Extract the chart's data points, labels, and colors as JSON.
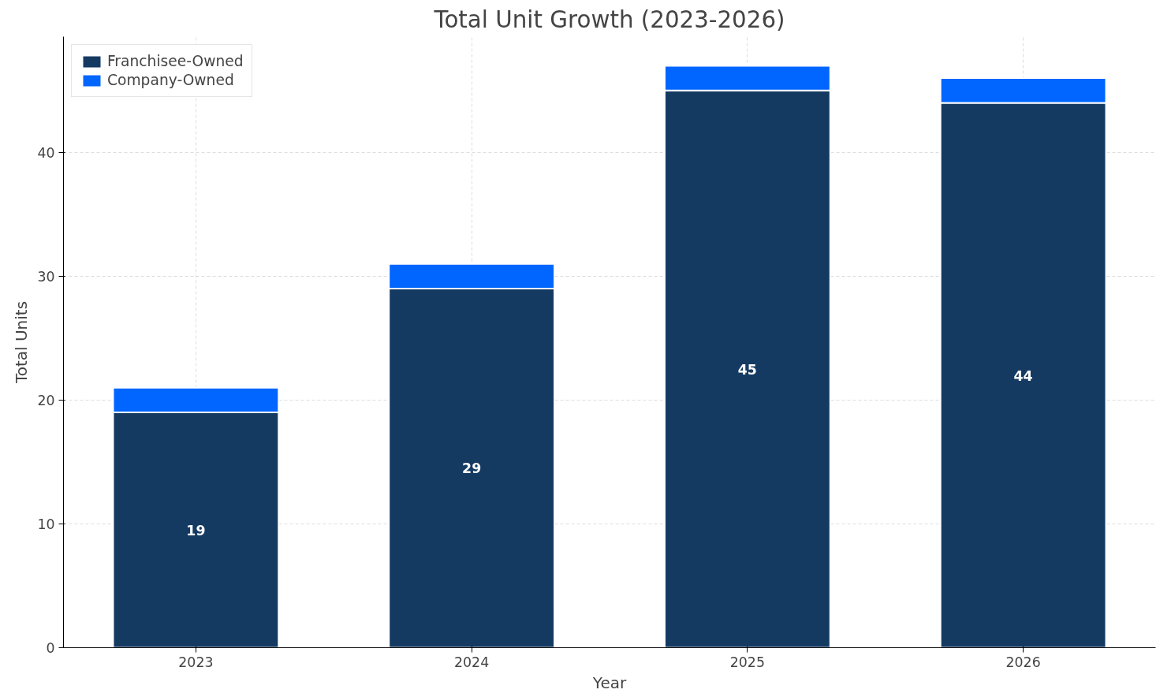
{
  "chart_data": {
    "type": "bar",
    "title": "Total Unit Growth (2023-2026)",
    "xlabel": "Year",
    "ylabel": "Total Units",
    "categories": [
      "2023",
      "2024",
      "2025",
      "2026"
    ],
    "stacked": true,
    "series": [
      {
        "name": "Franchisee-Owned",
        "color": "#153a62",
        "values": [
          19,
          29,
          45,
          44
        ],
        "value_labels": [
          "19",
          "29",
          "45",
          "44"
        ]
      },
      {
        "name": "Company-Owned",
        "color": "#0066ff",
        "values": [
          2,
          2,
          2,
          2
        ]
      }
    ],
    "ylim": [
      0,
      49.35
    ],
    "yticks": [
      0,
      10,
      20,
      30,
      40
    ],
    "grid": true,
    "legend": "top left"
  }
}
